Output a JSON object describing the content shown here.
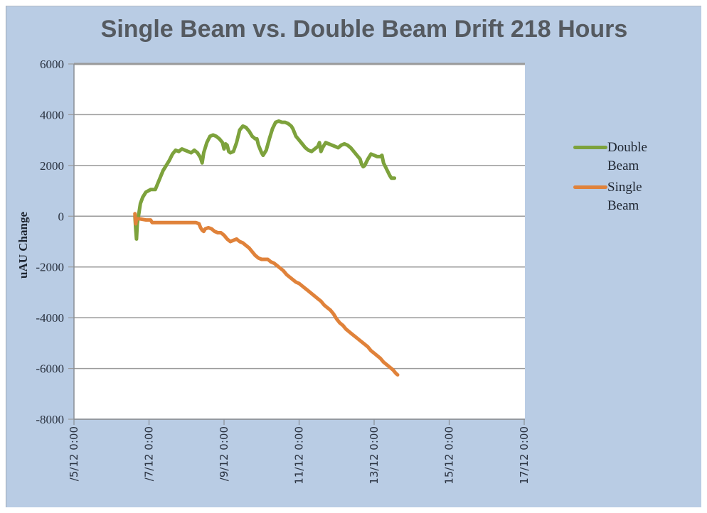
{
  "chart_data": {
    "type": "line",
    "title": "Single Beam vs. Double Beam Drift 218 Hours",
    "xlabel": "",
    "ylabel": "uAU Change",
    "ylim": [
      -8000,
      6000
    ],
    "yticks": [
      6000,
      4000,
      2000,
      0,
      -2000,
      -4000,
      -6000,
      -8000
    ],
    "ytick_labels": [
      "6000",
      "4000",
      "2000",
      "0",
      "-2000",
      "-4000",
      "-6000",
      "-8000"
    ],
    "xtick_labels": [
      "/5/12 0:00",
      "/7/12 0:00",
      "/9/12 0:00",
      "11/12 0:00",
      "13/12 0:00",
      "15/12 0:00",
      "17/12 0:00"
    ],
    "x_unit": "hours since /5/12 0:00",
    "xlim": [
      0,
      288
    ],
    "grid": {
      "horizontal": true,
      "vertical": false
    },
    "legend_position": "right",
    "series": [
      {
        "name": "Double Beam",
        "color": "#7da23c",
        "points": [
          [
            39,
            0
          ],
          [
            39.5,
            -500
          ],
          [
            40,
            -900
          ],
          [
            40.5,
            -300
          ],
          [
            41.5,
            100
          ],
          [
            42.5,
            500
          ],
          [
            44,
            750
          ],
          [
            46,
            950
          ],
          [
            49,
            1050
          ],
          [
            52,
            1050
          ],
          [
            53,
            1200
          ],
          [
            55,
            1500
          ],
          [
            57,
            1800
          ],
          [
            59,
            2000
          ],
          [
            61,
            2200
          ],
          [
            63,
            2450
          ],
          [
            65,
            2600
          ],
          [
            67,
            2550
          ],
          [
            69,
            2650
          ],
          [
            71,
            2600
          ],
          [
            73,
            2550
          ],
          [
            75,
            2500
          ],
          [
            77,
            2600
          ],
          [
            79,
            2500
          ],
          [
            81,
            2300
          ],
          [
            82,
            2100
          ],
          [
            83,
            2500
          ],
          [
            85,
            2900
          ],
          [
            87,
            3150
          ],
          [
            89,
            3200
          ],
          [
            91,
            3150
          ],
          [
            93,
            3050
          ],
          [
            95,
            2900
          ],
          [
            96,
            2650
          ],
          [
            97,
            2850
          ],
          [
            98,
            2800
          ],
          [
            99,
            2550
          ],
          [
            100,
            2500
          ],
          [
            102,
            2550
          ],
          [
            104,
            2900
          ],
          [
            106,
            3400
          ],
          [
            108,
            3550
          ],
          [
            110,
            3500
          ],
          [
            112,
            3350
          ],
          [
            114,
            3150
          ],
          [
            116,
            3050
          ],
          [
            117,
            3050
          ],
          [
            118,
            2800
          ],
          [
            120,
            2500
          ],
          [
            121,
            2400
          ],
          [
            123,
            2600
          ],
          [
            125,
            3050
          ],
          [
            127,
            3450
          ],
          [
            129,
            3700
          ],
          [
            131,
            3750
          ],
          [
            133,
            3700
          ],
          [
            135,
            3700
          ],
          [
            137,
            3650
          ],
          [
            139,
            3550
          ],
          [
            140,
            3450
          ],
          [
            142,
            3150
          ],
          [
            144,
            3000
          ],
          [
            146,
            2850
          ],
          [
            148,
            2700
          ],
          [
            150,
            2600
          ],
          [
            152,
            2550
          ],
          [
            154,
            2650
          ],
          [
            156,
            2750
          ],
          [
            157,
            2900
          ],
          [
            158,
            2550
          ],
          [
            159,
            2700
          ],
          [
            161,
            2900
          ],
          [
            163,
            2850
          ],
          [
            165,
            2800
          ],
          [
            167,
            2750
          ],
          [
            169,
            2700
          ],
          [
            171,
            2800
          ],
          [
            173,
            2850
          ],
          [
            175,
            2800
          ],
          [
            177,
            2700
          ],
          [
            179,
            2550
          ],
          [
            181,
            2400
          ],
          [
            183,
            2250
          ],
          [
            184,
            2050
          ],
          [
            185,
            1950
          ],
          [
            186,
            2000
          ],
          [
            188,
            2250
          ],
          [
            190,
            2450
          ],
          [
            192,
            2400
          ],
          [
            194,
            2350
          ],
          [
            196,
            2350
          ],
          [
            197,
            2400
          ],
          [
            198,
            2100
          ],
          [
            200,
            1850
          ],
          [
            202,
            1600
          ],
          [
            203,
            1500
          ],
          [
            205,
            1500
          ]
        ]
      },
      {
        "name": "Single Beam",
        "color": "#e0823a",
        "points": [
          [
            39,
            100
          ],
          [
            39.5,
            -300
          ],
          [
            40,
            -100
          ],
          [
            42,
            -100
          ],
          [
            46,
            -150
          ],
          [
            49,
            -150
          ],
          [
            50,
            -250
          ],
          [
            55,
            -250
          ],
          [
            60,
            -250
          ],
          [
            66,
            -250
          ],
          [
            72,
            -250
          ],
          [
            78,
            -250
          ],
          [
            80,
            -300
          ],
          [
            81,
            -450
          ],
          [
            82,
            -550
          ],
          [
            83,
            -600
          ],
          [
            84,
            -500
          ],
          [
            86,
            -450
          ],
          [
            88,
            -500
          ],
          [
            90,
            -600
          ],
          [
            92,
            -650
          ],
          [
            94,
            -650
          ],
          [
            96,
            -750
          ],
          [
            98,
            -900
          ],
          [
            100,
            -1000
          ],
          [
            102,
            -950
          ],
          [
            104,
            -900
          ],
          [
            106,
            -1000
          ],
          [
            108,
            -1050
          ],
          [
            110,
            -1150
          ],
          [
            112,
            -1250
          ],
          [
            114,
            -1400
          ],
          [
            116,
            -1550
          ],
          [
            118,
            -1650
          ],
          [
            120,
            -1700
          ],
          [
            122,
            -1700
          ],
          [
            124,
            -1700
          ],
          [
            126,
            -1800
          ],
          [
            128,
            -1850
          ],
          [
            130,
            -1950
          ],
          [
            132,
            -2050
          ],
          [
            134,
            -2150
          ],
          [
            136,
            -2300
          ],
          [
            138,
            -2400
          ],
          [
            140,
            -2500
          ],
          [
            142,
            -2600
          ],
          [
            144,
            -2650
          ],
          [
            146,
            -2750
          ],
          [
            148,
            -2850
          ],
          [
            150,
            -2950
          ],
          [
            152,
            -3050
          ],
          [
            154,
            -3150
          ],
          [
            156,
            -3250
          ],
          [
            158,
            -3350
          ],
          [
            160,
            -3500
          ],
          [
            162,
            -3600
          ],
          [
            164,
            -3700
          ],
          [
            166,
            -3850
          ],
          [
            168,
            -4050
          ],
          [
            170,
            -4200
          ],
          [
            172,
            -4300
          ],
          [
            174,
            -4450
          ],
          [
            176,
            -4550
          ],
          [
            178,
            -4650
          ],
          [
            180,
            -4750
          ],
          [
            182,
            -4850
          ],
          [
            184,
            -4950
          ],
          [
            186,
            -5050
          ],
          [
            188,
            -5150
          ],
          [
            190,
            -5300
          ],
          [
            192,
            -5400
          ],
          [
            194,
            -5500
          ],
          [
            196,
            -5600
          ],
          [
            198,
            -5750
          ],
          [
            200,
            -5850
          ],
          [
            202,
            -5950
          ],
          [
            204,
            -6050
          ],
          [
            206,
            -6200
          ],
          [
            207,
            -6250
          ]
        ]
      }
    ]
  },
  "legend": {
    "items": [
      {
        "label_line1": "Double",
        "label_line2": "Beam",
        "color": "#7da23c"
      },
      {
        "label_line1": "Single",
        "label_line2": "Beam",
        "color": "#e0823a"
      }
    ]
  },
  "style": {
    "background": "#b9cce4",
    "plot_background": "#ffffff",
    "grid_color": "#9a9a9a",
    "title_color": "#555a60"
  }
}
